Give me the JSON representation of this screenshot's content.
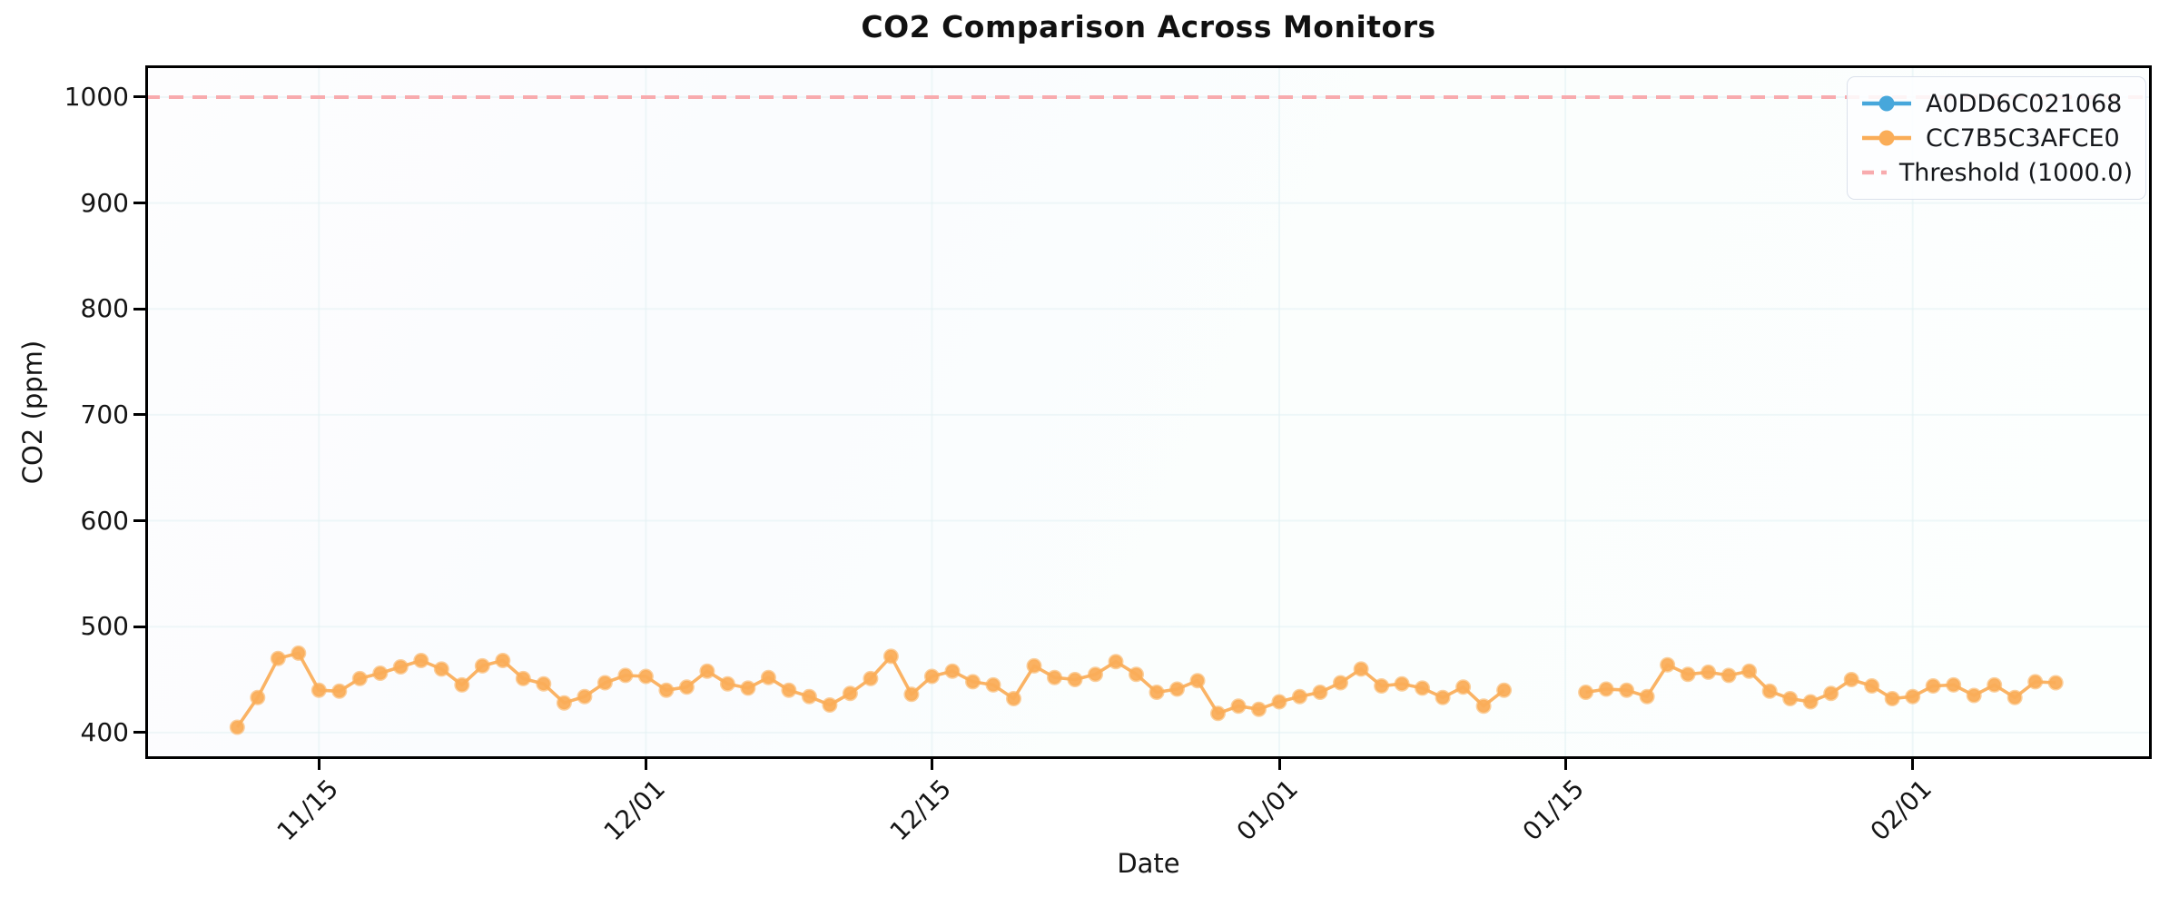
{
  "chart_data": {
    "type": "line",
    "title": "CO2 Comparison Across Monitors",
    "xlabel": "Date",
    "ylabel": "CO2 (ppm)",
    "ylim": [
      375,
      1030
    ],
    "yticks": [
      400,
      500,
      600,
      700,
      800,
      900,
      1000
    ],
    "xticks": [
      "11/15",
      "12/01",
      "12/15",
      "01/01",
      "01/15",
      "02/01"
    ],
    "x_domain_days": [
      5.5,
      103.7
    ],
    "grid": "very-faint",
    "legend_position": "upper right",
    "threshold": {
      "label": "Threshold (1000.0)",
      "value": 1000.0,
      "color": "#f8abae"
    },
    "series": [
      {
        "name": "A0DD6C021068",
        "color": "#47a7db",
        "points": []
      },
      {
        "name": "CC7B5C3AFCE0",
        "color": "#faad58",
        "points": [
          {
            "date": "11/11",
            "value": 405
          },
          {
            "date": "11/12",
            "value": 433
          },
          {
            "date": "11/13",
            "value": 470
          },
          {
            "date": "11/14",
            "value": 475
          },
          {
            "date": "11/15",
            "value": 440
          },
          {
            "date": "11/16",
            "value": 439
          },
          {
            "date": "11/17",
            "value": 451
          },
          {
            "date": "11/18",
            "value": 456
          },
          {
            "date": "11/19",
            "value": 462
          },
          {
            "date": "11/20",
            "value": 468
          },
          {
            "date": "11/21",
            "value": 460
          },
          {
            "date": "11/22",
            "value": 445
          },
          {
            "date": "11/23",
            "value": 463
          },
          {
            "date": "11/24",
            "value": 468
          },
          {
            "date": "11/25",
            "value": 451
          },
          {
            "date": "11/26",
            "value": 446
          },
          {
            "date": "11/27",
            "value": 428
          },
          {
            "date": "11/28",
            "value": 434
          },
          {
            "date": "11/29",
            "value": 447
          },
          {
            "date": "11/30",
            "value": 454
          },
          {
            "date": "12/01",
            "value": 453
          },
          {
            "date": "12/02",
            "value": 440
          },
          {
            "date": "12/03",
            "value": 443
          },
          {
            "date": "12/04",
            "value": 458
          },
          {
            "date": "12/05",
            "value": 446
          },
          {
            "date": "12/06",
            "value": 442
          },
          {
            "date": "12/07",
            "value": 452
          },
          {
            "date": "12/08",
            "value": 440
          },
          {
            "date": "12/09",
            "value": 434
          },
          {
            "date": "12/10",
            "value": 426
          },
          {
            "date": "12/11",
            "value": 437
          },
          {
            "date": "12/12",
            "value": 451
          },
          {
            "date": "12/13",
            "value": 472
          },
          {
            "date": "12/14",
            "value": 436
          },
          {
            "date": "12/15",
            "value": 453
          },
          {
            "date": "12/16",
            "value": 458
          },
          {
            "date": "12/17",
            "value": 448
          },
          {
            "date": "12/18",
            "value": 445
          },
          {
            "date": "12/19",
            "value": 432
          },
          {
            "date": "12/20",
            "value": 463
          },
          {
            "date": "12/21",
            "value": 452
          },
          {
            "date": "12/22",
            "value": 450
          },
          {
            "date": "12/23",
            "value": 455
          },
          {
            "date": "12/24",
            "value": 467
          },
          {
            "date": "12/25",
            "value": 455
          },
          {
            "date": "12/26",
            "value": 438
          },
          {
            "date": "12/27",
            "value": 441
          },
          {
            "date": "12/28",
            "value": 449
          },
          {
            "date": "12/29",
            "value": 418
          },
          {
            "date": "12/30",
            "value": 425
          },
          {
            "date": "12/31",
            "value": 422
          },
          {
            "date": "01/01",
            "value": 429
          },
          {
            "date": "01/02",
            "value": 434
          },
          {
            "date": "01/03",
            "value": 438
          },
          {
            "date": "01/04",
            "value": 447
          },
          {
            "date": "01/05",
            "value": 460
          },
          {
            "date": "01/06",
            "value": 444
          },
          {
            "date": "01/07",
            "value": 446
          },
          {
            "date": "01/08",
            "value": 442
          },
          {
            "date": "01/09",
            "value": 433
          },
          {
            "date": "01/10",
            "value": 443
          },
          {
            "date": "01/11",
            "value": 425
          },
          {
            "date": "01/12",
            "value": 440
          },
          {
            "date": "01/16",
            "value": 438
          },
          {
            "date": "01/17",
            "value": 441
          },
          {
            "date": "01/18",
            "value": 440
          },
          {
            "date": "01/19",
            "value": 434
          },
          {
            "date": "01/20",
            "value": 464
          },
          {
            "date": "01/21",
            "value": 455
          },
          {
            "date": "01/22",
            "value": 457
          },
          {
            "date": "01/23",
            "value": 454
          },
          {
            "date": "01/24",
            "value": 458
          },
          {
            "date": "01/25",
            "value": 439
          },
          {
            "date": "01/26",
            "value": 432
          },
          {
            "date": "01/27",
            "value": 429
          },
          {
            "date": "01/28",
            "value": 437
          },
          {
            "date": "01/29",
            "value": 450
          },
          {
            "date": "01/30",
            "value": 444
          },
          {
            "date": "01/31",
            "value": 432
          },
          {
            "date": "02/01",
            "value": 434
          },
          {
            "date": "02/02",
            "value": 444
          },
          {
            "date": "02/03",
            "value": 445
          },
          {
            "date": "02/04",
            "value": 435
          },
          {
            "date": "02/05",
            "value": 445
          },
          {
            "date": "02/06",
            "value": 433
          },
          {
            "date": "02/07",
            "value": 448
          },
          {
            "date": "02/08",
            "value": 447
          }
        ]
      }
    ],
    "legend": [
      "A0DD6C021068",
      "CC7B5C3AFCE0",
      "Threshold (1000.0)"
    ]
  }
}
